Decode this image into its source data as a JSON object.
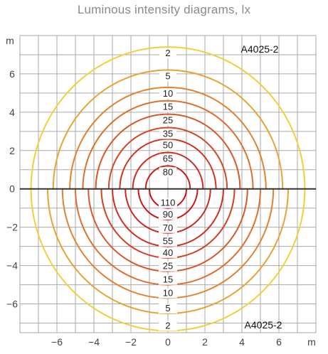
{
  "title": "Luminous intensity diagrams, lx",
  "chart_data": {
    "type": "line",
    "title": "Luminous intensity diagrams, lx",
    "xlabel": "m",
    "ylabel": "m",
    "xlim": [
      -8,
      8
    ],
    "ylim": [
      -7.5,
      8
    ],
    "xticks": [
      -6,
      -4,
      -2,
      0,
      2,
      4,
      6
    ],
    "yticks": [
      6,
      4,
      2,
      0,
      -2,
      -4,
      -6
    ],
    "grid": true,
    "model_top": "A4025-2",
    "model_bottom": "A4025-2",
    "colors": {
      "grid": "#aaaaaa",
      "axis": "#333333",
      "low": "#f3cf3b",
      "high": "#c8101a"
    },
    "upper": {
      "labels": [
        "2",
        "5",
        "10",
        "15",
        "25",
        "35",
        "50",
        "65",
        "80"
      ],
      "contours": [
        {
          "value": 2,
          "r": 7.4
        },
        {
          "value": 5,
          "r": 6.2
        },
        {
          "value": 10,
          "r": 5.3
        },
        {
          "value": 15,
          "r": 4.6
        },
        {
          "value": 25,
          "r": 3.9
        },
        {
          "value": 35,
          "r": 3.2
        },
        {
          "value": 50,
          "r": 2.6
        },
        {
          "value": 65,
          "r": 1.9
        },
        {
          "value": 80,
          "r": 1.2
        }
      ]
    },
    "lower": {
      "labels": [
        "110",
        "90",
        "70",
        "55",
        "40",
        "25",
        "15",
        "10",
        "5",
        "2"
      ],
      "contours": [
        {
          "value": 110,
          "r": 1.0
        },
        {
          "value": 90,
          "r": 1.6
        },
        {
          "value": 70,
          "r": 2.3
        },
        {
          "value": 55,
          "r": 3.0
        },
        {
          "value": 40,
          "r": 3.6
        },
        {
          "value": 25,
          "r": 4.3
        },
        {
          "value": 15,
          "r": 5.0
        },
        {
          "value": 10,
          "r": 5.7
        },
        {
          "value": 5,
          "r": 6.5
        },
        {
          "value": 2,
          "r": 7.4
        }
      ]
    }
  }
}
